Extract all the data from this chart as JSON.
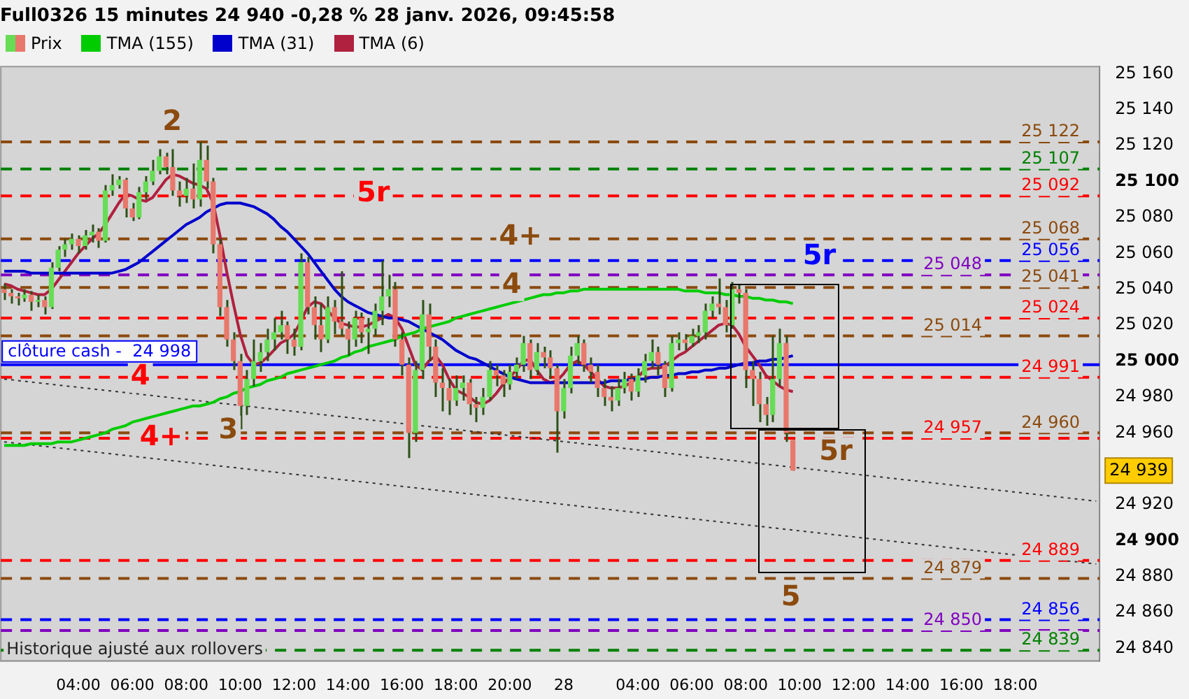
{
  "chart_data": {
    "type": "candlestick",
    "title": "Full0326 15 minutes 24 940 -0,28 % 28 janv. 2026, 09:45:58",
    "categories": [
      null,
      null,
      null,
      null,
      null,
      null,
      null,
      null,
      null,
      null,
      null,
      "04:00",
      null,
      null,
      null,
      null,
      null,
      null,
      null,
      "06:00",
      null,
      null,
      null,
      null,
      null,
      null,
      null,
      "08:00",
      null,
      null,
      null,
      null,
      null,
      null,
      null,
      "10:00",
      null,
      null,
      null,
      null,
      null,
      null,
      null,
      "12:00",
      null,
      null,
      null,
      null,
      null,
      null,
      null,
      "14:00",
      null,
      null,
      null,
      null,
      null,
      null,
      null,
      "16:00",
      null,
      null,
      null,
      null,
      null,
      null,
      null,
      "18:00",
      null,
      null,
      null,
      null,
      null,
      null,
      null,
      "20:00",
      null,
      null,
      null,
      null,
      null,
      null,
      null,
      "28",
      null,
      null,
      null,
      null,
      null,
      null,
      null,
      null,
      null,
      null,
      "04:00",
      null,
      null,
      null,
      null,
      null,
      null,
      null,
      "06:00",
      null,
      null,
      null,
      null,
      null,
      null,
      null,
      "08:00",
      null,
      null,
      null,
      null,
      null,
      null,
      null,
      "10:00",
      null,
      null,
      null,
      null,
      null,
      null,
      null,
      "12:00",
      null,
      null,
      null,
      null,
      null,
      null,
      null,
      "14:00",
      null,
      null,
      null,
      null,
      null,
      null,
      null,
      "16:00",
      null,
      null,
      null,
      null,
      null,
      null,
      null,
      "18:00",
      null,
      null,
      null,
      null,
      null,
      null,
      null,
      null,
      null,
      null,
      null,
      null
    ],
    "ylim": [
      24833,
      25164
    ],
    "yticks": [
      {
        "value": 24840,
        "label": "24 840"
      },
      {
        "value": 24860,
        "label": "24 860"
      },
      {
        "value": 24880,
        "label": "24 880"
      },
      {
        "value": 24900,
        "label": "24 900"
      },
      {
        "value": 24920,
        "label": "24 920"
      },
      {
        "value": 24960,
        "label": "24 960"
      },
      {
        "value": 24980,
        "label": "24 980"
      },
      {
        "value": 25000,
        "label": "25 000"
      },
      {
        "value": 25020,
        "label": "25 020"
      },
      {
        "value": 25040,
        "label": "25 040"
      },
      {
        "value": 25060,
        "label": "25 060"
      },
      {
        "value": 25080,
        "label": "25 080"
      },
      {
        "value": 25100,
        "label": "25 100"
      },
      {
        "value": 25120,
        "label": "25 120"
      },
      {
        "value": 25140,
        "label": "25 140"
      },
      {
        "value": 25160,
        "label": "25 160"
      }
    ],
    "legend": "top left",
    "series": [
      {
        "name": "Prix",
        "ohlc": [
          [
            25040,
            25043,
            25034,
            25038
          ],
          [
            25038,
            25040,
            25032,
            25036
          ],
          [
            25036,
            25038,
            25031,
            25035
          ],
          [
            25035,
            25040,
            25033,
            25037
          ],
          [
            25037,
            25039,
            25028,
            25033
          ],
          [
            25033,
            25037,
            25030,
            25034
          ],
          [
            25034,
            25036,
            25026,
            25030
          ],
          [
            25030,
            25055,
            25029,
            25052
          ],
          [
            25052,
            25064,
            25050,
            25062
          ],
          [
            25062,
            25068,
            25058,
            25065
          ],
          [
            25065,
            25071,
            25062,
            25068
          ],
          [
            25068,
            25070,
            25060,
            25064
          ],
          [
            25064,
            25073,
            25062,
            25070
          ],
          [
            25070,
            25076,
            25066,
            25072
          ],
          [
            25072,
            25074,
            25063,
            25067
          ],
          [
            25067,
            25098,
            25066,
            25095
          ],
          [
            25095,
            25104,
            25092,
            25098
          ],
          [
            25098,
            25103,
            25096,
            25101
          ],
          [
            25101,
            25102,
            25080,
            25085
          ],
          [
            25085,
            25088,
            25078,
            25080
          ],
          [
            25080,
            25097,
            25079,
            25094
          ],
          [
            25094,
            25103,
            25090,
            25100
          ],
          [
            25100,
            25112,
            25098,
            25106
          ],
          [
            25106,
            25118,
            25104,
            25114
          ],
          [
            25114,
            25116,
            25104,
            25108
          ],
          [
            25108,
            25118,
            25092,
            25095
          ],
          [
            25095,
            25100,
            25086,
            25092
          ],
          [
            25092,
            25102,
            25088,
            25096
          ],
          [
            25096,
            25110,
            25085,
            25090
          ],
          [
            25090,
            25122,
            25086,
            25112
          ],
          [
            25112,
            25120,
            25096,
            25100
          ],
          [
            25100,
            25102,
            25060,
            25065
          ],
          [
            25065,
            25068,
            25025,
            25030
          ],
          [
            25030,
            25034,
            25008,
            25012
          ],
          [
            25012,
            25016,
            24995,
            25000
          ],
          [
            25000,
            25004,
            24962,
            24975
          ],
          [
            24975,
            24995,
            24970,
            24990
          ],
          [
            24990,
            25012,
            24986,
            25000
          ],
          [
            25000,
            25010,
            24994,
            25005
          ],
          [
            25005,
            25018,
            25000,
            25012
          ],
          [
            25012,
            25024,
            25006,
            25016
          ],
          [
            25016,
            25028,
            25012,
            25020
          ],
          [
            25020,
            25022,
            25004,
            25012
          ],
          [
            25012,
            25018,
            25003,
            25008
          ],
          [
            25008,
            25060,
            25006,
            25055
          ],
          [
            25055,
            25058,
            25026,
            25030
          ],
          [
            25030,
            25036,
            25012,
            25020
          ],
          [
            25020,
            25032,
            25005,
            25012
          ],
          [
            25012,
            25036,
            25010,
            25030
          ],
          [
            25030,
            25034,
            25015,
            25022
          ],
          [
            25022,
            25050,
            25014,
            25018
          ],
          [
            25018,
            25022,
            25003,
            25012
          ],
          [
            25012,
            25028,
            25008,
            25024
          ],
          [
            25024,
            25027,
            25010,
            25016
          ],
          [
            25016,
            25024,
            25004,
            25018
          ],
          [
            25018,
            25032,
            25014,
            25028
          ],
          [
            25028,
            25056,
            25020,
            25036
          ],
          [
            25036,
            25048,
            25030,
            25040
          ],
          [
            25040,
            25044,
            25008,
            25012
          ],
          [
            25012,
            25016,
            24992,
            24998
          ],
          [
            24998,
            25002,
            24946,
            24960
          ],
          [
            24960,
            25000,
            24955,
            24995
          ],
          [
            24995,
            25034,
            24990,
            25026
          ],
          [
            25026,
            25032,
            25000,
            25008
          ],
          [
            25008,
            25012,
            24980,
            24988
          ],
          [
            24988,
            24996,
            24972,
            24985
          ],
          [
            24985,
            24990,
            24970,
            24978
          ],
          [
            24978,
            24992,
            24975,
            24985
          ],
          [
            24985,
            24992,
            24978,
            24988
          ],
          [
            24988,
            24990,
            24970,
            24976
          ],
          [
            24976,
            24980,
            24966,
            24974
          ],
          [
            24974,
            24985,
            24970,
            24980
          ],
          [
            24980,
            25000,
            24978,
            24995
          ],
          [
            24995,
            24998,
            24986,
            24992
          ],
          [
            24992,
            24995,
            24980,
            24987
          ],
          [
            24987,
            24998,
            24984,
            24994
          ],
          [
            24994,
            25002,
            24990,
            24998
          ],
          [
            24998,
            25014,
            24994,
            25010
          ],
          [
            25010,
            25012,
            24990,
            24995
          ],
          [
            24995,
            25010,
            24992,
            25005
          ],
          [
            25005,
            25008,
            24996,
            25002
          ],
          [
            25002,
            25006,
            24990,
            24996
          ],
          [
            24996,
            24998,
            24949,
            24972
          ],
          [
            24972,
            24990,
            24968,
            24985
          ],
          [
            24985,
            25008,
            24982,
            25003
          ],
          [
            25003,
            25014,
            24998,
            25010
          ],
          [
            25010,
            25012,
            24994,
            24998
          ],
          [
            24998,
            25002,
            24988,
            24994
          ],
          [
            24994,
            24998,
            24980,
            24985
          ],
          [
            24985,
            24990,
            24975,
            24980
          ],
          [
            24980,
            24986,
            24972,
            24978
          ],
          [
            24978,
            24990,
            24975,
            24985
          ],
          [
            24985,
            24994,
            24982,
            24990
          ],
          [
            24990,
            24993,
            24978,
            24983
          ],
          [
            24983,
            24996,
            24980,
            24992
          ],
          [
            24992,
            25004,
            24988,
            25000
          ],
          [
            25000,
            25012,
            24996,
            25005
          ],
          [
            25005,
            25008,
            24992,
            24998
          ],
          [
            24998,
            25000,
            24980,
            24985
          ],
          [
            24985,
            25014,
            24983,
            25010
          ],
          [
            25010,
            25016,
            25006,
            25012
          ],
          [
            25012,
            25015,
            25006,
            25010
          ],
          [
            25010,
            25018,
            25008,
            25014
          ],
          [
            25014,
            25020,
            25010,
            25016
          ],
          [
            25016,
            25032,
            25012,
            25028
          ],
          [
            25028,
            25036,
            25024,
            25032
          ],
          [
            25032,
            25046,
            25026,
            25030
          ],
          [
            25030,
            25034,
            25016,
            25020
          ],
          [
            25020,
            25044,
            25018,
            25040
          ],
          [
            25040,
            25043,
            25032,
            25038
          ],
          [
            25038,
            25040,
            24985,
            24995
          ],
          [
            24995,
            25000,
            24975,
            24990
          ],
          [
            24990,
            24994,
            24966,
            24976
          ],
          [
            24976,
            24980,
            24964,
            24970
          ],
          [
            24970,
            25014,
            24966,
            24990
          ],
          [
            24990,
            25018,
            24986,
            25010
          ],
          [
            25010,
            25014,
            24955,
            24960
          ],
          [
            24956,
            24956,
            24939,
            24939
          ],
          null,
          null,
          null,
          null,
          null,
          null,
          null,
          null,
          null,
          null,
          null,
          null,
          null,
          null,
          null,
          null,
          null,
          null,
          null,
          null,
          null,
          null,
          null,
          null,
          null,
          null,
          null,
          null,
          null,
          null,
          null,
          null,
          null,
          null,
          null,
          null,
          null,
          null,
          null,
          null,
          null,
          null,
          null,
          null,
          null
        ]
      },
      {
        "name": "TMA (155)",
        "type": "line",
        "color": "#00cc00",
        "values": [
          24953,
          24953,
          24953,
          24953,
          24954,
          24954,
          24954,
          24954,
          24955,
          24955,
          24955,
          24956,
          24957,
          24958,
          24959,
          24960,
          24962,
          24963,
          24964,
          24966,
          24967,
          24968,
          24969,
          24970,
          24971,
          24972,
          24973,
          24974,
          24975,
          24975,
          24976,
          24977,
          24979,
          24980,
          24982,
          24983,
          24985,
          24986,
          24987,
          24989,
          24990,
          24991,
          24993,
          24994,
          24995,
          24996,
          24997,
          24998,
          24999,
          25000,
          25002,
          25003,
          25005,
          25006,
          25008,
          25009,
          25010,
          25011,
          25012,
          25014,
          25015,
          25016,
          25018,
          25019,
          25020,
          25021,
          25022,
          25024,
          25025,
          25026,
          25027,
          25028,
          25029,
          25030,
          25031,
          25032,
          25033,
          25034,
          25035,
          25036,
          25037,
          25037,
          25038,
          25038,
          25039,
          25039,
          25040,
          25040,
          25040,
          25040,
          25040,
          25040,
          25040,
          25040,
          25040,
          25040,
          25040,
          25040,
          25040,
          25040,
          25040,
          25039,
          25039,
          25039,
          25038,
          25038,
          25038,
          25037,
          25037,
          25036,
          25036,
          25035,
          25035,
          25034,
          25034,
          25033,
          25033,
          25032,
          null,
          null,
          null,
          null,
          null,
          null,
          null,
          null,
          null,
          null,
          null,
          null,
          null,
          null,
          null,
          null,
          null,
          null,
          null,
          null,
          null,
          null,
          null,
          null,
          null,
          null,
          null,
          null,
          null,
          null,
          null,
          null,
          null,
          null,
          null,
          null,
          null,
          null,
          null,
          null,
          null,
          null,
          null,
          null,
          null
        ]
      },
      {
        "name": "TMA (31)",
        "type": "line",
        "color": "#0000cc",
        "values": [
          25050,
          25050,
          25050,
          25050,
          25049,
          25049,
          25049,
          25049,
          25049,
          25049,
          25049,
          25049,
          25049,
          25049,
          25049,
          25049,
          25049,
          25050,
          25051,
          25053,
          25055,
          25058,
          25061,
          25064,
          25067,
          25070,
          25073,
          25076,
          25078,
          25080,
          25083,
          25085,
          25087,
          25088,
          25088,
          25088,
          25087,
          25086,
          25084,
          25082,
          25079,
          25075,
          25072,
          25068,
          25064,
          25060,
          25055,
          25050,
          25045,
          25040,
          25036,
          25033,
          25031,
          25029,
          25027,
          25026,
          25025,
          25024,
          25024,
          25023,
          25022,
          25020,
          25018,
          25016,
          25014,
          25012,
          25009,
          25006,
          25004,
          25002,
          25001,
          24999,
          24997,
          24995,
          24993,
          24991,
          24990,
          24989,
          24988,
          24988,
          24988,
          24988,
          24988,
          24988,
          24988,
          24988,
          24988,
          24988,
          24988,
          24988,
          24989,
          24989,
          24989,
          24990,
          24990,
          24990,
          24991,
          24991,
          24992,
          24992,
          24993,
          24993,
          24994,
          24994,
          24995,
          24995,
          24996,
          24996,
          24997,
          24998,
          24999,
          24999,
          25000,
          25000,
          25001,
          25001,
          25002,
          25003,
          null,
          null,
          null,
          null,
          null,
          null,
          null,
          null,
          null,
          null,
          null,
          null,
          null,
          null,
          null,
          null,
          null,
          null,
          null,
          null,
          null,
          null,
          null,
          null,
          null,
          null,
          null,
          null,
          null,
          null,
          null,
          null,
          null,
          null,
          null,
          null,
          null,
          null,
          null,
          null,
          null,
          null,
          null,
          null,
          null
        ]
      },
      {
        "name": "TMA (6)",
        "type": "line",
        "color": "#b0203f",
        "values": [
          25043,
          25042,
          25040,
          25039,
          25038,
          25037,
          25037,
          25040,
          25045,
          25050,
          25055,
          25060,
          25064,
          25068,
          25071,
          25076,
          25082,
          25088,
          25093,
          25092,
          25090,
          25089,
          25091,
          25096,
          25101,
          25104,
          25103,
          25101,
          25099,
          25098,
          25096,
          25088,
          25070,
          25050,
          25032,
          25015,
          25003,
          24998,
          24999,
          25002,
          25006,
          25010,
          25012,
          25015,
          25022,
          25030,
          25033,
          25032,
          25028,
          25024,
          25021,
          25020,
          25019,
          25019,
          25020,
          25022,
          25024,
          25026,
          25024,
          25018,
          25008,
          24998,
          24995,
          25000,
          25003,
          24998,
          24990,
          24984,
          24982,
          24980,
          24977,
          24976,
          24978,
          24982,
          24987,
          24991,
          24995,
          25000,
          25001,
          24995,
          24990,
          24988,
          24989,
          24993,
          24998,
          25000,
          24998,
          24994,
          24990,
          24986,
          24985,
          24985,
          24986,
          24988,
          24991,
          24995,
          24996,
          24996,
          24997,
          25000,
          25003,
          25005,
          25008,
          25011,
          25014,
          25017,
          25020,
          25021,
          25020,
          25015,
          25008,
          25003,
          24998,
          24992,
          24989,
          24986,
          24984,
          24983,
          null,
          null,
          null,
          null,
          null,
          null,
          null,
          null,
          null,
          null,
          null,
          null,
          null,
          null,
          null,
          null,
          null,
          null,
          null,
          null,
          null,
          null,
          null,
          null,
          null,
          null,
          null,
          null,
          null,
          null,
          null,
          null,
          null,
          null,
          null,
          null,
          null,
          null,
          null,
          null,
          null,
          null,
          null,
          null,
          null
        ]
      },
      {
        "type": "line",
        "color": "#333333",
        "line_style": "dotted",
        "values": [
          24990,
          null,
          null,
          null,
          null,
          null,
          null,
          null,
          null,
          null,
          null,
          null,
          null,
          null,
          null,
          null,
          null,
          null,
          null,
          null,
          null,
          null,
          null,
          null,
          null,
          null,
          null,
          null,
          null,
          null,
          null,
          null,
          null,
          null,
          null,
          null,
          null,
          null,
          null,
          null,
          null,
          null,
          null,
          null,
          null,
          null,
          null,
          null,
          null,
          null,
          null,
          null,
          null,
          null,
          null,
          null,
          null,
          null,
          null,
          null,
          null,
          null,
          null,
          null,
          null,
          null,
          null,
          null,
          null,
          null,
          null,
          null,
          null,
          null,
          null,
          null,
          null,
          null,
          null,
          null,
          null,
          null,
          null,
          null,
          null,
          null,
          null,
          null,
          null,
          null,
          null,
          null,
          null,
          null,
          null,
          null,
          null,
          null,
          null,
          null,
          null,
          null,
          null,
          null,
          null,
          null,
          null,
          null,
          null,
          null,
          null,
          null,
          null,
          null,
          null,
          null,
          null,
          null,
          null,
          null,
          null,
          null,
          null,
          null,
          null,
          null,
          null,
          null,
          null,
          null,
          null,
          null,
          null,
          null,
          null,
          null,
          null,
          null,
          null,
          null,
          null,
          null,
          null,
          null,
          null,
          null,
          null,
          null,
          null,
          null,
          null,
          null,
          null,
          null,
          null,
          null,
          null,
          null,
          null,
          null,
          null,
          null,
          24922
        ]
      },
      {
        "type": "line",
        "color": "#333333",
        "line_style": "dotted",
        "values": [
          24955,
          null,
          null,
          null,
          null,
          null,
          null,
          null,
          null,
          null,
          null,
          null,
          null,
          null,
          null,
          null,
          null,
          null,
          null,
          null,
          null,
          null,
          null,
          null,
          null,
          null,
          null,
          null,
          null,
          null,
          null,
          null,
          null,
          null,
          null,
          null,
          null,
          null,
          null,
          null,
          null,
          null,
          null,
          null,
          null,
          null,
          null,
          null,
          null,
          null,
          null,
          null,
          null,
          null,
          null,
          null,
          null,
          null,
          null,
          null,
          null,
          null,
          null,
          null,
          null,
          null,
          null,
          null,
          null,
          null,
          null,
          null,
          null,
          null,
          null,
          null,
          null,
          null,
          null,
          null,
          null,
          null,
          null,
          null,
          null,
          null,
          null,
          null,
          null,
          null,
          null,
          null,
          null,
          null,
          null,
          null,
          null,
          null,
          null,
          null,
          null,
          null,
          null,
          null,
          null,
          null,
          null,
          null,
          null,
          null,
          null,
          null,
          null,
          null,
          null,
          null,
          null,
          null,
          null,
          null,
          null,
          null,
          null,
          null,
          null,
          null,
          null,
          null,
          null,
          null,
          null,
          null,
          null,
          null,
          null,
          null,
          null,
          null,
          null,
          null,
          null,
          null,
          null,
          null,
          null,
          null,
          null,
          null,
          null,
          null,
          null,
          null,
          null,
          null,
          null,
          null,
          null,
          null,
          null,
          null,
          null,
          null,
          24887
        ]
      }
    ],
    "ref_lines": [
      {
        "axis": "y",
        "value": 25122,
        "label": "25 122",
        "color": "#8b4a0e",
        "line_style": "dashed"
      },
      {
        "axis": "y",
        "value": 25107,
        "label": "25 107",
        "color": "#008000",
        "line_style": "dashed"
      },
      {
        "axis": "y",
        "value": 25092,
        "label": "25 092",
        "color": "#ff0000",
        "line_style": "dashed"
      },
      {
        "axis": "y",
        "value": 25068,
        "label": "25 068",
        "color": "#8b4a0e",
        "line_style": "dashed"
      },
      {
        "axis": "y",
        "value": 25056,
        "label": "25 056",
        "color": "#0000ff",
        "line_style": "dashed"
      },
      {
        "axis": "y",
        "value": 25048,
        "label": "25 048",
        "color": "#8000c0",
        "line_style": "dashed"
      },
      {
        "axis": "y",
        "value": 25041,
        "label": "25 041",
        "color": "#8b4a0e",
        "line_style": "dashed"
      },
      {
        "axis": "y",
        "value": 25024,
        "label": "25 024",
        "color": "#ff0000",
        "line_style": "dashed"
      },
      {
        "axis": "y",
        "value": 25014,
        "label": "25 014",
        "color": "#8b4a0e",
        "line_style": "dashed"
      },
      {
        "axis": "y",
        "value": 24998,
        "label": "clôture cash -  24 998",
        "color": "#0000ff",
        "line_style": "solid"
      },
      {
        "axis": "y",
        "value": 24991,
        "label": "24 991",
        "color": "#ff0000",
        "line_style": "dashed"
      },
      {
        "axis": "y",
        "value": 24960,
        "label": "24 960",
        "color": "#8b4a0e",
        "line_style": "dashed"
      },
      {
        "axis": "y",
        "value": 24957,
        "label": "24 957",
        "color": "#ff0000",
        "line_style": "dashed"
      },
      {
        "axis": "y",
        "value": 24889,
        "label": "24 889",
        "color": "#ff0000",
        "line_style": "dashed"
      },
      {
        "axis": "y",
        "value": 24879,
        "label": "24 879",
        "color": "#8b4a0e",
        "line_style": "dashed"
      },
      {
        "axis": "y",
        "value": 24856,
        "label": "24 856",
        "color": "#0000ff",
        "line_style": "dashed"
      },
      {
        "axis": "y",
        "value": 24850,
        "label": "24 850",
        "color": "#8000c0",
        "line_style": "dashed"
      },
      {
        "axis": "y",
        "value": 24839,
        "label": "24 839",
        "color": "#008000",
        "line_style": "dashed"
      }
    ],
    "annotations": [
      {
        "text": "2",
        "y": 25122
      },
      {
        "text": "5r",
        "y": 25093
      },
      {
        "text": "4+",
        "y": 25069
      },
      {
        "text": "4",
        "y": 25042
      },
      {
        "text": "5r",
        "y": 25058
      },
      {
        "text": "4",
        "y": 24991
      },
      {
        "text": "4+",
        "y": 24957
      },
      {
        "text": "3",
        "y": 24961
      },
      {
        "text": "5r",
        "y": 24960
      },
      {
        "text": "5",
        "y": 24879
      },
      "24 939",
      "Historique ajusté aux rollovers"
    ]
  }
}
